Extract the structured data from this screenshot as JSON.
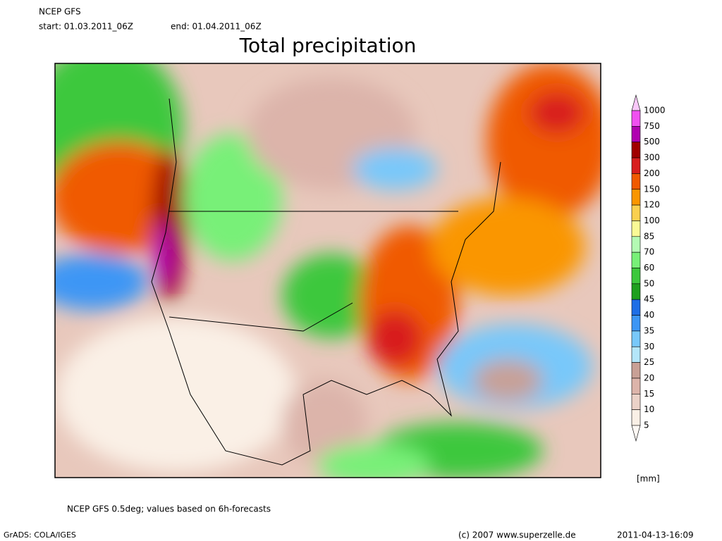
{
  "header": {
    "model": "NCEP GFS",
    "start": "start: 01.03.2011_06Z",
    "end": "end: 01.04.2011_06Z",
    "title": "Total precipitation"
  },
  "legend": {
    "levels": [
      1000,
      750,
      500,
      300,
      200,
      150,
      120,
      100,
      85,
      70,
      60,
      50,
      45,
      40,
      35,
      30,
      25,
      20,
      15,
      10,
      5
    ],
    "colors": [
      "#f8c8f8",
      "#f050f0",
      "#b000b0",
      "#a00000",
      "#d81e1e",
      "#f05a00",
      "#fa9600",
      "#fad050",
      "#fafa96",
      "#b4fab4",
      "#78f078",
      "#3cc83c",
      "#1ea01e",
      "#1e6ee6",
      "#3c96f5",
      "#78c8fa",
      "#b4e6fa",
      "#c8a096",
      "#dcb4aa",
      "#ebd2c8",
      "#faf0e6",
      "#fdf8f4"
    ],
    "unit": "[mm]"
  },
  "footer": {
    "note": "NCEP GFS 0.5deg; values based on 6h-forecasts",
    "software": "GrADS: COLA/IGES",
    "copyright": "(c) 2007 www.superzelle.de",
    "timestamp": "2011-04-13-16:09"
  }
}
